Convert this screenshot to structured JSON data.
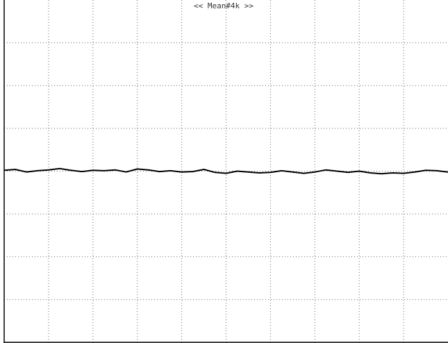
{
  "chart_data": {
    "type": "line",
    "title": "<< Mean#4k >>",
    "xlabel": "",
    "ylabel": "",
    "grid": true,
    "divisions": {
      "x": 10,
      "y": 8
    },
    "xlim": [
      0,
      10
    ],
    "ylim": [
      -4,
      4
    ],
    "series": [
      {
        "color": "#000000",
        "x": [
          0,
          0.25,
          0.5,
          0.75,
          1,
          1.25,
          1.5,
          1.75,
          2,
          2.25,
          2.5,
          2.75,
          3,
          3.25,
          3.5,
          3.75,
          4,
          4.25,
          4.5,
          4.75,
          5,
          5.25,
          5.5,
          5.75,
          6,
          6.25,
          6.5,
          6.75,
          7,
          7.25,
          7.5,
          7.75,
          8,
          8.25,
          8.5,
          8.75,
          9,
          9.25,
          9.5,
          9.75,
          10
        ],
        "values": [
          0.02,
          0.04,
          -0.02,
          0.01,
          0.03,
          0.06,
          0.02,
          -0.01,
          0.02,
          0.01,
          0.03,
          -0.02,
          0.05,
          0.03,
          -0.01,
          0.01,
          -0.02,
          -0.01,
          0.04,
          -0.03,
          -0.05,
          0.0,
          -0.02,
          -0.04,
          -0.03,
          0.01,
          -0.02,
          -0.05,
          -0.02,
          0.03,
          0.0,
          -0.03,
          0.0,
          -0.04,
          -0.06,
          -0.04,
          -0.05,
          -0.02,
          0.02,
          0.01,
          -0.02
        ]
      }
    ]
  },
  "colors": {
    "background": "#ffffff",
    "grid": "#666666",
    "frame": "#000000",
    "trace": "#000000"
  }
}
